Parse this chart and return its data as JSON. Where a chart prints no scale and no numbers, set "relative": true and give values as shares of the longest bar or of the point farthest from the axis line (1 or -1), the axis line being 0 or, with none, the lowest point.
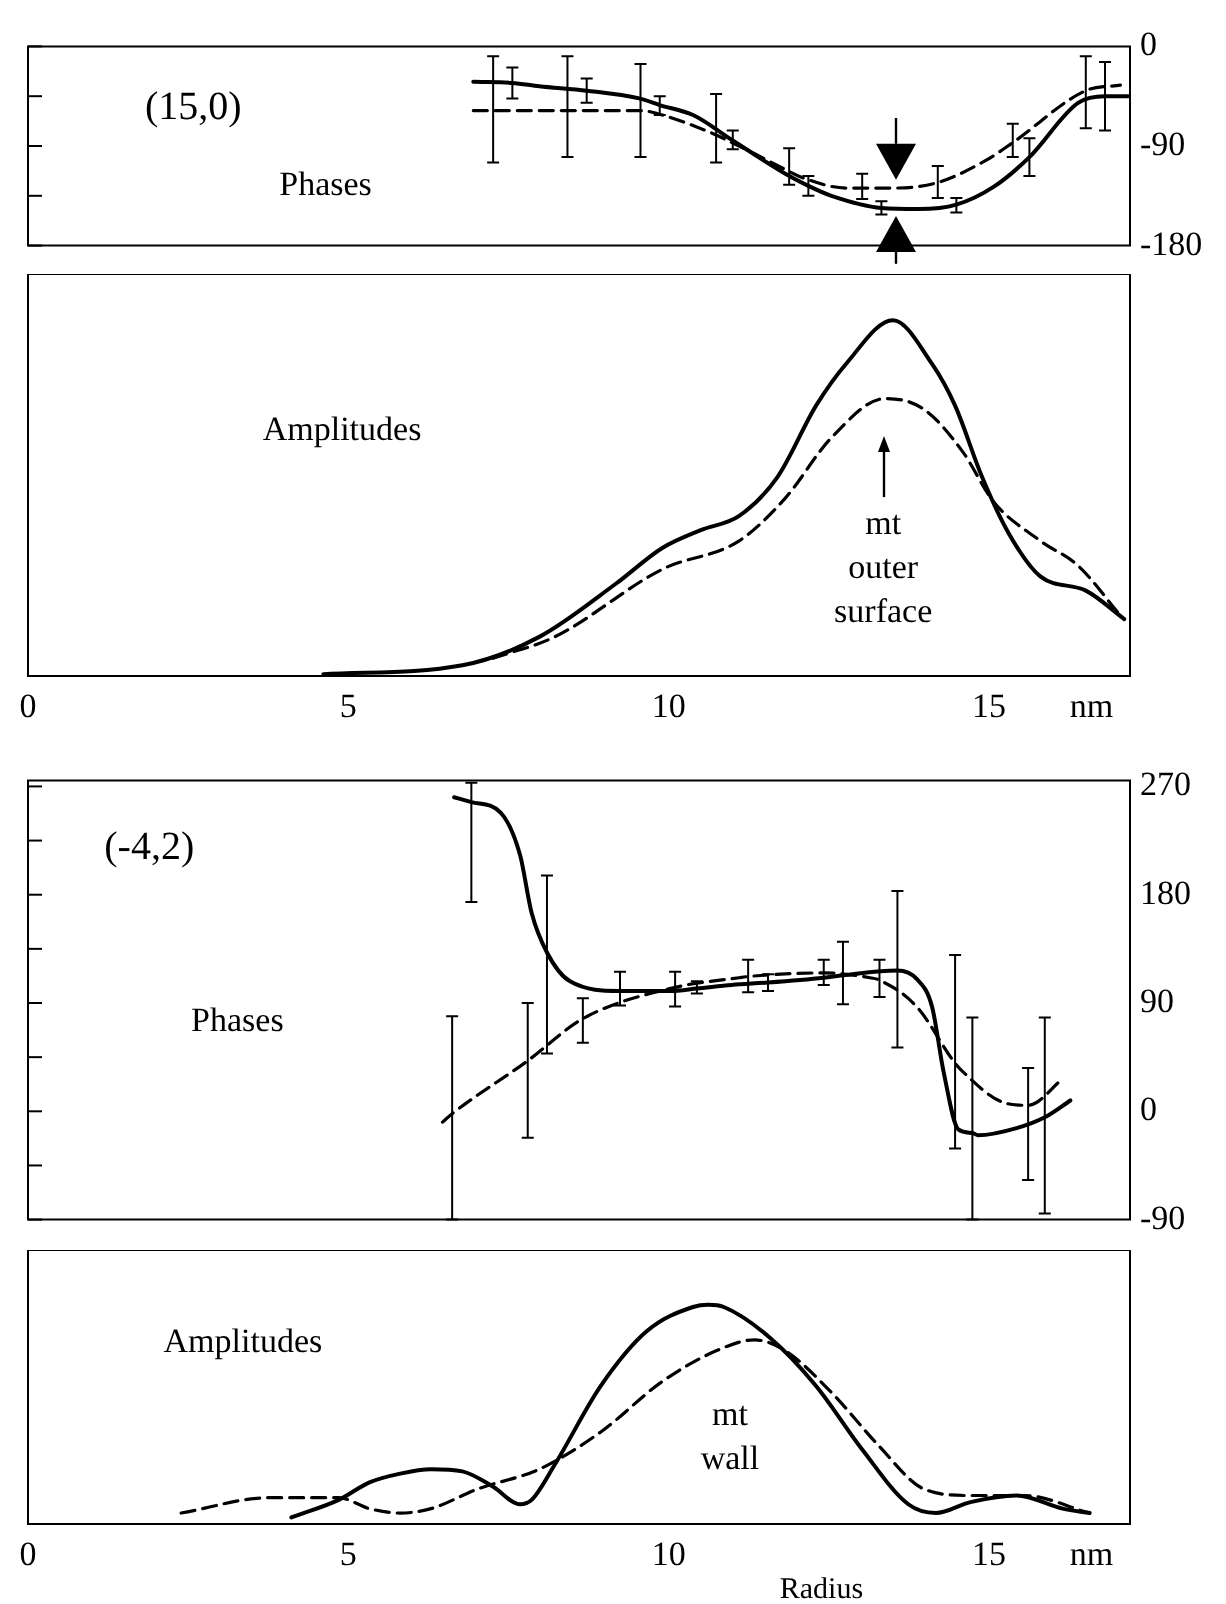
{
  "chart_data": [
    {
      "type": "line",
      "xlim": [
        0,
        17.2
      ],
      "ylim": [
        -180,
        0
      ],
      "yticks": [
        0,
        {
          "value": -45,
          "label": null
        },
        -90,
        {
          "value": -135,
          "label": null
        },
        -180
      ],
      "tick_labels": "y",
      "grid": false,
      "legend": false,
      "marker": "none",
      "annotations": [
        "(15,0)",
        "Phases"
      ],
      "series": [
        {
          "color": "#000000",
          "line_style": "solid",
          "x": [
            6.95,
            7.56,
            7.98,
            8.72,
            9.54,
            9.86,
            10.38,
            11.0,
            11.82,
            12.18,
            12.54,
            13.32,
            13.9,
            14.49,
            15.07,
            15.63,
            16.39,
            16.81,
            17.17
          ],
          "values": [
            -32,
            -33,
            -36,
            -40,
            -47,
            -53,
            -62,
            -85,
            -115,
            -126,
            -135,
            -146,
            -147,
            -143,
            -127,
            -100,
            -51,
            -45,
            -45
          ],
          "errors": [
            null,
            [
              -47,
              -19
            ],
            null,
            [
              -51,
              -29
            ],
            null,
            [
              -62,
              -45
            ],
            null,
            [
              -93,
              -76
            ],
            null,
            [
              -135,
              -117
            ],
            null,
            [
              -152,
              -140
            ],
            null,
            [
              -150,
              -137
            ],
            null,
            [
              -117,
              -83
            ],
            null,
            [
              -76,
              -14
            ],
            null
          ]
        },
        {
          "color": "#000000",
          "line_style": "dashed",
          "x": [
            6.95,
            7.26,
            8.42,
            9.56,
            9.9,
            10.62,
            10.74,
            11.34,
            11.88,
            12.06,
            12.78,
            13.02,
            13.5,
            14.2,
            14.95,
            15.37,
            16.51,
            17.05
          ],
          "values": [
            -58,
            -58,
            -58,
            -58,
            -62,
            -77,
            -80,
            -97,
            -113,
            -118,
            -128,
            -128,
            -128,
            -123,
            -103,
            -87,
            -40,
            -35
          ],
          "errors": [
            null,
            [
              -105,
              -9
            ],
            [
              -100,
              -9
            ],
            [
              -100,
              -16
            ],
            null,
            null,
            [
              -105,
              -43
            ],
            null,
            [
              -125,
              -92
            ],
            null,
            null,
            [
              -138,
              -115
            ],
            null,
            [
              -137,
              -108
            ],
            null,
            [
              -100,
              -70
            ],
            [
              -74,
              -9
            ],
            null
          ]
        }
      ]
    },
    {
      "type": "line",
      "relative": true,
      "xlim": [
        0,
        17.2
      ],
      "xticks": [
        0,
        5,
        10,
        15,
        {
          "value": 16.6,
          "label": "nm"
        }
      ],
      "tick_labels": "x",
      "grid": false,
      "legend": false,
      "marker": "none",
      "annotations": [
        "Amplitudes",
        "mt\nouter\nsurface"
      ],
      "series": [
        {
          "color": "#000000",
          "line_style": "solid",
          "x": [
            4.61,
            6.78,
            7.98,
            9.18,
            9.9,
            10.5,
            11.1,
            11.7,
            12.3,
            12.78,
            13.5,
            14.1,
            14.47,
            14.89,
            15.31,
            15.8,
            16.51,
            17.11
          ],
          "values": [
            0.005,
            0.03,
            0.11,
            0.26,
            0.36,
            0.41,
            0.45,
            0.56,
            0.76,
            0.88,
            1,
            0.88,
            0.76,
            0.56,
            0.4,
            0.28,
            0.24,
            0.16
          ]
        },
        {
          "color": "#000000",
          "line_style": "dashed",
          "x": [
            7.26,
            8.22,
            9.9,
            11.1,
            11.82,
            12.54,
            13.38,
            13.98,
            14.59,
            15.07,
            15.8,
            16.39,
            17.05
          ],
          "values": [
            0.05,
            0.11,
            0.3,
            0.38,
            0.5,
            0.67,
            0.78,
            0.75,
            0.63,
            0.49,
            0.38,
            0.31,
            0.17
          ]
        }
      ]
    },
    {
      "type": "line",
      "xlim": [
        0,
        17.2
      ],
      "ylim": [
        -90,
        275
      ],
      "yticks": [
        270,
        {
          "value": 225,
          "label": null
        },
        180,
        {
          "value": 135,
          "label": null
        },
        90,
        {
          "value": 45,
          "label": null
        },
        0,
        {
          "value": -45,
          "label": null
        },
        -90
      ],
      "tick_labels": "y",
      "grid": false,
      "legend": false,
      "marker": "none",
      "annotations": [
        "(-4,2)",
        "Phases"
      ],
      "series": [
        {
          "color": "#000000",
          "line_style": "solid",
          "x": [
            6.65,
            6.92,
            7.38,
            7.68,
            7.86,
            8.1,
            8.46,
            9.24,
            10.02,
            10.44,
            10.98,
            11.55,
            12.42,
            12.72,
            13.57,
            13.87,
            14.11,
            14.29,
            14.52,
            14.74,
            14.83,
            15.43,
            15.87,
            16.27
          ],
          "values": [
            261,
            257,
            248,
            213,
            165,
            132,
            108,
            100,
            100,
            102,
            105,
            107,
            111,
            113,
            117,
            110,
            87,
            33,
            -15,
            -18,
            -20,
            -14,
            -5,
            9
          ],
          "errors": [
            null,
            [
              174,
              273
            ],
            null,
            null,
            null,
            [
              48,
              196
            ],
            null,
            [
              88,
              116
            ],
            null,
            [
              98,
              108
            ],
            null,
            [
              100,
              114
            ],
            null,
            [
              89,
              141
            ],
            [
              53,
              183
            ],
            null,
            null,
            null,
            null,
            [
              -90,
              78
            ],
            null,
            null,
            [
              -85,
              78
            ],
            null
          ]
        },
        {
          "color": "#000000",
          "line_style": "dashed",
          "x": [
            6.47,
            6.62,
            7.8,
            8.66,
            10.1,
            11.1,
            11.24,
            12.42,
            13.14,
            13.29,
            13.87,
            14.47,
            14.59,
            15.19,
            15.61,
            16.15
          ],
          "values": [
            -9,
            -2,
            42,
            77,
            103,
            111,
            112,
            115,
            111,
            109,
            87,
            40,
            33,
            8,
            5,
            27
          ],
          "errors": [
            null,
            [
              -90,
              79
            ],
            [
              -22,
              90
            ],
            [
              57,
              94
            ],
            [
              87,
              116
            ],
            null,
            [
              99,
              126
            ],
            [
              105,
              126
            ],
            null,
            [
              95,
              126
            ],
            null,
            [
              -31,
              130
            ],
            null,
            null,
            [
              -57,
              36
            ],
            null
          ]
        }
      ]
    },
    {
      "type": "line",
      "relative": true,
      "xlim": [
        0,
        17.2
      ],
      "xticks": [
        0,
        5,
        10,
        15,
        {
          "value": 16.6,
          "label": "nm"
        }
      ],
      "xlabel": "Radius",
      "tick_labels": "x",
      "grid": false,
      "legend": false,
      "marker": "none",
      "annotations": [
        "Amplitudes",
        "mt\nwall"
      ],
      "series": [
        {
          "color": "#000000",
          "line_style": "solid",
          "x": [
            4.11,
            4.85,
            5.33,
            5.81,
            6.29,
            6.78,
            7.26,
            7.68,
            7.86,
            8.22,
            8.94,
            9.66,
            10.38,
            10.62,
            10.86,
            11.58,
            12.3,
            13.02,
            13.74,
            14.17,
            14.71,
            15.43,
            16.15,
            16.57
          ],
          "values": [
            0.03,
            0.11,
            0.19,
            0.23,
            0.25,
            0.24,
            0.17,
            0.09,
            0.11,
            0.27,
            0.63,
            0.88,
            0.99,
            1,
            0.99,
            0.85,
            0.63,
            0.34,
            0.09,
            0.05,
            0.1,
            0.13,
            0.07,
            0.05
          ]
        },
        {
          "color": "#000000",
          "line_style": "dashed",
          "x": [
            2.39,
            3.77,
            4.85,
            5.33,
            5.81,
            6.29,
            7.02,
            7.98,
            8.94,
            9.9,
            10.74,
            11.34,
            11.82,
            12.54,
            13.27,
            13.98,
            14.71,
            15.55,
            16.57
          ],
          "values": [
            0.05,
            0.12,
            0.12,
            0.07,
            0.05,
            0.07,
            0.16,
            0.25,
            0.42,
            0.65,
            0.79,
            0.84,
            0.79,
            0.6,
            0.36,
            0.16,
            0.13,
            0.13,
            0.05
          ]
        }
      ]
    }
  ]
}
